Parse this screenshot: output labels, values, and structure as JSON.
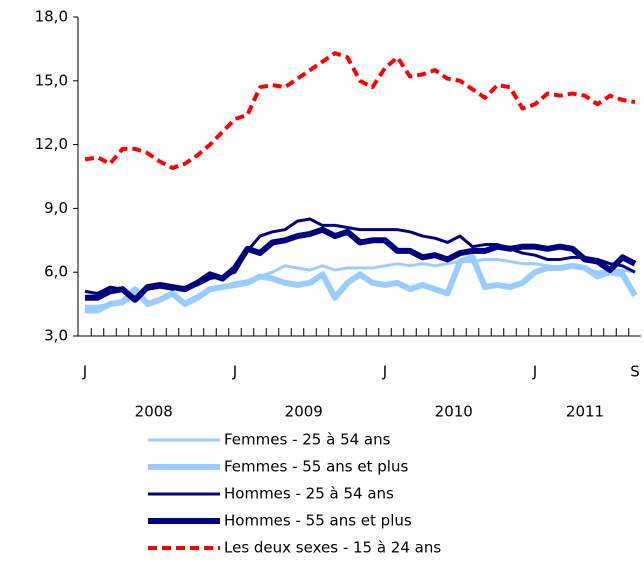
{
  "chart_data": {
    "type": "line",
    "categories": [
      "J",
      null,
      null,
      null,
      null,
      null,
      null,
      null,
      null,
      null,
      null,
      null,
      "J",
      null,
      null,
      null,
      null,
      null,
      null,
      null,
      null,
      null,
      null,
      null,
      "J",
      null,
      null,
      null,
      null,
      null,
      null,
      null,
      null,
      null,
      null,
      null,
      "J",
      null,
      null,
      null,
      null,
      null,
      null,
      null,
      "S"
    ],
    "years": [
      "2008",
      "2009",
      "2010",
      "2011"
    ],
    "ylim": [
      3,
      18
    ],
    "yticks": [
      {
        "value": 3,
        "label": "3,0"
      },
      {
        "value": 6,
        "label": "6,0"
      },
      {
        "value": 9,
        "label": "9,0"
      },
      {
        "value": 12,
        "label": "12,0"
      },
      {
        "value": 15,
        "label": "15,0"
      },
      {
        "value": 18,
        "label": "18,0"
      }
    ],
    "legend": "bottom",
    "series": [
      {
        "name": "Femmes - 25 à 54 ans",
        "color": "#99ccff",
        "width": 3,
        "dashed": false,
        "values": [
          4.4,
          4.4,
          4.5,
          4.5,
          4.9,
          4.6,
          4.7,
          5.0,
          4.6,
          4.9,
          5.2,
          5.3,
          5.5,
          5.6,
          5.8,
          6.0,
          6.3,
          6.2,
          6.1,
          6.3,
          6.1,
          6.2,
          6.2,
          6.2,
          6.3,
          6.4,
          6.3,
          6.4,
          6.3,
          6.4,
          6.5,
          6.5,
          6.6,
          6.6,
          6.5,
          6.4,
          6.4,
          6.3,
          6.2,
          6.3,
          6.2,
          6.0,
          6.1,
          6.1,
          6.0
        ]
      },
      {
        "name": "Femmes - 55 ans et plus",
        "color": "#99ccff",
        "width": 6,
        "dashed": false,
        "values": [
          4.2,
          4.2,
          4.5,
          4.6,
          5.2,
          4.5,
          4.7,
          5.0,
          4.5,
          4.8,
          5.2,
          5.3,
          5.4,
          5.5,
          5.8,
          5.7,
          5.5,
          5.4,
          5.5,
          5.9,
          4.8,
          5.5,
          5.9,
          5.5,
          5.4,
          5.5,
          5.2,
          5.4,
          5.2,
          5.0,
          6.5,
          6.7,
          5.3,
          5.4,
          5.3,
          5.5,
          6.0,
          6.2,
          6.2,
          6.3,
          6.2,
          5.8,
          6.0,
          5.9,
          4.9
        ]
      },
      {
        "name": "Hommes - 25 à 54 ans",
        "color": "#000080",
        "width": 3,
        "dashed": false,
        "values": [
          5.1,
          5.0,
          5.3,
          5.2,
          4.8,
          5.2,
          5.3,
          5.2,
          5.3,
          5.4,
          5.7,
          5.8,
          6.0,
          7.0,
          7.7,
          7.9,
          8.0,
          8.4,
          8.5,
          8.2,
          8.2,
          8.1,
          8.0,
          8.0,
          8.0,
          8.0,
          7.9,
          7.7,
          7.6,
          7.4,
          7.7,
          7.2,
          7.3,
          7.3,
          7.1,
          6.9,
          6.8,
          6.6,
          6.6,
          6.7,
          6.7,
          6.6,
          6.4,
          6.3,
          6.0
        ]
      },
      {
        "name": "Hommes - 55 ans et plus",
        "color": "#000080",
        "width": 6,
        "dashed": false,
        "values": [
          4.8,
          4.8,
          5.1,
          5.2,
          4.7,
          5.3,
          5.4,
          5.3,
          5.2,
          5.5,
          5.9,
          5.7,
          6.2,
          7.1,
          6.9,
          7.4,
          7.5,
          7.7,
          7.8,
          8.0,
          7.7,
          7.9,
          7.4,
          7.5,
          7.5,
          7.0,
          7.0,
          6.7,
          6.8,
          6.6,
          6.9,
          7.0,
          7.0,
          7.2,
          7.1,
          7.2,
          7.2,
          7.1,
          7.2,
          7.1,
          6.6,
          6.5,
          6.1,
          6.7,
          6.4
        ]
      },
      {
        "name": "Les deux sexes - 15 à 24 ans",
        "color": "#ff0000",
        "width": 4,
        "dashed": true,
        "values": [
          11.3,
          11.4,
          11.1,
          11.8,
          11.8,
          11.6,
          11.2,
          10.9,
          11.1,
          11.5,
          12.0,
          12.6,
          13.2,
          13.4,
          14.7,
          14.8,
          14.7,
          15.1,
          15.5,
          15.9,
          16.3,
          16.1,
          15.0,
          14.7,
          15.6,
          16.1,
          15.2,
          15.3,
          15.5,
          15.1,
          15.0,
          14.6,
          14.2,
          14.8,
          14.7,
          13.7,
          13.9,
          14.4,
          14.3,
          14.4,
          14.3,
          13.9,
          14.3,
          14.1,
          14.0
        ]
      }
    ]
  }
}
